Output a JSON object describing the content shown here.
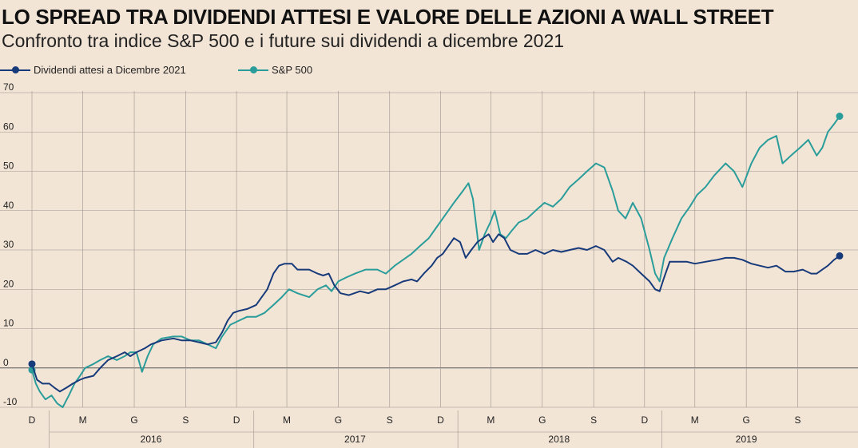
{
  "title": "LO SPREAD TRA DIVIDENDI ATTESI E VALORE DELLE AZIONI A WALL STREET",
  "subtitle": "Confronto tra indice S&P 500 e i future sui dividendi a dicembre 2021",
  "colors": {
    "dividends": "#173a7a",
    "sp500": "#2a9d9b",
    "background": "#f3e5d6",
    "grid": "#8a8a8a"
  },
  "chart_data": {
    "type": "line",
    "title": "LO SPREAD TRA DIVIDENDI ATTESI E VALORE DELLE AZIONI A WALL STREET",
    "subtitle": "Confronto tra indice S&P 500 e i future sui dividendi a dicembre 2021",
    "xlabel": "",
    "ylabel": "",
    "ylim": [
      -10,
      70
    ],
    "yticks": [
      -10,
      0,
      10,
      20,
      30,
      40,
      50,
      60,
      70
    ],
    "x_range": [
      "2015-12-01",
      "2019-11-15"
    ],
    "month_ticks": [
      {
        "date": "2015-12-01",
        "label": "D"
      },
      {
        "date": "2016-03-01",
        "label": "M"
      },
      {
        "date": "2016-06-01",
        "label": "G"
      },
      {
        "date": "2016-09-01",
        "label": "S"
      },
      {
        "date": "2016-12-01",
        "label": "D"
      },
      {
        "date": "2017-03-01",
        "label": "M"
      },
      {
        "date": "2017-06-01",
        "label": "G"
      },
      {
        "date": "2017-09-01",
        "label": "S"
      },
      {
        "date": "2017-12-01",
        "label": "D"
      },
      {
        "date": "2018-03-01",
        "label": "M"
      },
      {
        "date": "2018-06-01",
        "label": "G"
      },
      {
        "date": "2018-09-01",
        "label": "S"
      },
      {
        "date": "2018-12-01",
        "label": "D"
      },
      {
        "date": "2019-03-01",
        "label": "M"
      },
      {
        "date": "2019-06-01",
        "label": "G"
      },
      {
        "date": "2019-09-01",
        "label": "S"
      }
    ],
    "year_labels": [
      {
        "label": "2016",
        "date": "2016-07-01"
      },
      {
        "label": "2017",
        "date": "2017-07-01"
      },
      {
        "label": "2018",
        "date": "2018-07-01"
      },
      {
        "label": "2019",
        "date": "2019-06-01"
      }
    ],
    "year_separators": [
      "2016-01-01",
      "2017-01-01",
      "2018-01-01",
      "2019-01-01"
    ],
    "grid": true,
    "legend_position": "top-left",
    "series": [
      {
        "name": "Dividendi attesi a Dicembre 2021",
        "key": "dividends",
        "points": [
          [
            "2015-12-01",
            1
          ],
          [
            "2015-12-10",
            -3
          ],
          [
            "2015-12-20",
            -4
          ],
          [
            "2016-01-01",
            -4
          ],
          [
            "2016-01-10",
            -5
          ],
          [
            "2016-01-20",
            -6
          ],
          [
            "2016-02-01",
            -5
          ],
          [
            "2016-02-12",
            -4
          ],
          [
            "2016-02-25",
            -3
          ],
          [
            "2016-03-05",
            -2.5
          ],
          [
            "2016-03-20",
            -2
          ],
          [
            "2016-04-01",
            0
          ],
          [
            "2016-04-15",
            2
          ],
          [
            "2016-05-01",
            3
          ],
          [
            "2016-05-15",
            4
          ],
          [
            "2016-05-25",
            3
          ],
          [
            "2016-06-05",
            4
          ],
          [
            "2016-06-20",
            5
          ],
          [
            "2016-07-01",
            6
          ],
          [
            "2016-07-20",
            7
          ],
          [
            "2016-08-10",
            7.5
          ],
          [
            "2016-08-25",
            7
          ],
          [
            "2016-09-10",
            7
          ],
          [
            "2016-09-25",
            6.5
          ],
          [
            "2016-10-10",
            6
          ],
          [
            "2016-10-25",
            6.5
          ],
          [
            "2016-11-05",
            9
          ],
          [
            "2016-11-15",
            12
          ],
          [
            "2016-11-25",
            14
          ],
          [
            "2016-12-05",
            14.5
          ],
          [
            "2016-12-20",
            15
          ],
          [
            "2017-01-05",
            16
          ],
          [
            "2017-01-15",
            18
          ],
          [
            "2017-01-25",
            20
          ],
          [
            "2017-02-05",
            24
          ],
          [
            "2017-02-15",
            26
          ],
          [
            "2017-02-25",
            26.5
          ],
          [
            "2017-03-10",
            26.5
          ],
          [
            "2017-03-20",
            25
          ],
          [
            "2017-04-10",
            25
          ],
          [
            "2017-04-25",
            24
          ],
          [
            "2017-05-05",
            23.5
          ],
          [
            "2017-05-15",
            24
          ],
          [
            "2017-05-25",
            21
          ],
          [
            "2017-06-05",
            19
          ],
          [
            "2017-06-20",
            18.5
          ],
          [
            "2017-07-10",
            19.5
          ],
          [
            "2017-07-25",
            19
          ],
          [
            "2017-08-10",
            20
          ],
          [
            "2017-08-25",
            20
          ],
          [
            "2017-09-10",
            21
          ],
          [
            "2017-09-25",
            22
          ],
          [
            "2017-10-10",
            22.5
          ],
          [
            "2017-10-20",
            22
          ],
          [
            "2017-11-01",
            24
          ],
          [
            "2017-11-15",
            26
          ],
          [
            "2017-11-25",
            28
          ],
          [
            "2017-12-05",
            29
          ],
          [
            "2017-12-15",
            31
          ],
          [
            "2017-12-25",
            33
          ],
          [
            "2018-01-05",
            32
          ],
          [
            "2018-01-15",
            28
          ],
          [
            "2018-01-25",
            30
          ],
          [
            "2018-02-05",
            32
          ],
          [
            "2018-02-15",
            33
          ],
          [
            "2018-02-25",
            34
          ],
          [
            "2018-03-05",
            32
          ],
          [
            "2018-03-15",
            34
          ],
          [
            "2018-03-25",
            33
          ],
          [
            "2018-04-05",
            30
          ],
          [
            "2018-04-20",
            29
          ],
          [
            "2018-05-05",
            29
          ],
          [
            "2018-05-20",
            30
          ],
          [
            "2018-06-05",
            29
          ],
          [
            "2018-06-20",
            30
          ],
          [
            "2018-07-05",
            29.5
          ],
          [
            "2018-07-20",
            30
          ],
          [
            "2018-08-05",
            30.5
          ],
          [
            "2018-08-20",
            30
          ],
          [
            "2018-09-05",
            31
          ],
          [
            "2018-09-20",
            30
          ],
          [
            "2018-10-05",
            27
          ],
          [
            "2018-10-15",
            28
          ],
          [
            "2018-10-30",
            27
          ],
          [
            "2018-11-10",
            26
          ],
          [
            "2018-11-25",
            24
          ],
          [
            "2018-12-10",
            22
          ],
          [
            "2018-12-20",
            20
          ],
          [
            "2018-12-28",
            19.5
          ],
          [
            "2019-01-05",
            23
          ],
          [
            "2019-01-15",
            27
          ],
          [
            "2019-01-30",
            27
          ],
          [
            "2019-02-15",
            27
          ],
          [
            "2019-03-01",
            26.5
          ],
          [
            "2019-03-20",
            27
          ],
          [
            "2019-04-10",
            27.5
          ],
          [
            "2019-04-25",
            28
          ],
          [
            "2019-05-10",
            28
          ],
          [
            "2019-05-25",
            27.5
          ],
          [
            "2019-06-10",
            26.5
          ],
          [
            "2019-06-25",
            26
          ],
          [
            "2019-07-10",
            25.5
          ],
          [
            "2019-07-25",
            26
          ],
          [
            "2019-08-10",
            24.5
          ],
          [
            "2019-08-25",
            24.5
          ],
          [
            "2019-09-10",
            25
          ],
          [
            "2019-09-25",
            24
          ],
          [
            "2019-10-05",
            24
          ],
          [
            "2019-10-15",
            25
          ],
          [
            "2019-10-25",
            26
          ],
          [
            "2019-11-05",
            27.5
          ],
          [
            "2019-11-15",
            28.5
          ]
        ]
      },
      {
        "name": "S&P 500",
        "key": "sp500",
        "points": [
          [
            "2015-12-01",
            -0.5
          ],
          [
            "2015-12-08",
            -4
          ],
          [
            "2015-12-15",
            -6
          ],
          [
            "2015-12-25",
            -8
          ],
          [
            "2016-01-05",
            -7
          ],
          [
            "2016-01-15",
            -9
          ],
          [
            "2016-01-25",
            -10
          ],
          [
            "2016-02-05",
            -7
          ],
          [
            "2016-02-15",
            -4
          ],
          [
            "2016-02-25",
            -2
          ],
          [
            "2016-03-05",
            0
          ],
          [
            "2016-03-20",
            1
          ],
          [
            "2016-04-01",
            2
          ],
          [
            "2016-04-15",
            3
          ],
          [
            "2016-05-01",
            2
          ],
          [
            "2016-05-15",
            3
          ],
          [
            "2016-05-25",
            4
          ],
          [
            "2016-06-05",
            4
          ],
          [
            "2016-06-15",
            -1
          ],
          [
            "2016-06-25",
            3
          ],
          [
            "2016-07-05",
            6
          ],
          [
            "2016-07-20",
            7.5
          ],
          [
            "2016-08-10",
            8
          ],
          [
            "2016-08-25",
            8
          ],
          [
            "2016-09-10",
            7
          ],
          [
            "2016-09-25",
            7
          ],
          [
            "2016-10-10",
            6
          ],
          [
            "2016-10-25",
            5
          ],
          [
            "2016-11-05",
            8
          ],
          [
            "2016-11-20",
            11
          ],
          [
            "2016-12-05",
            12
          ],
          [
            "2016-12-20",
            13
          ],
          [
            "2017-01-05",
            13
          ],
          [
            "2017-01-20",
            14
          ],
          [
            "2017-02-05",
            16
          ],
          [
            "2017-02-20",
            18
          ],
          [
            "2017-03-05",
            20
          ],
          [
            "2017-03-20",
            19
          ],
          [
            "2017-04-10",
            18
          ],
          [
            "2017-04-25",
            20
          ],
          [
            "2017-05-10",
            21
          ],
          [
            "2017-05-20",
            19.5
          ],
          [
            "2017-06-01",
            22
          ],
          [
            "2017-06-15",
            23
          ],
          [
            "2017-07-01",
            24
          ],
          [
            "2017-07-20",
            25
          ],
          [
            "2017-08-10",
            25
          ],
          [
            "2017-08-25",
            24
          ],
          [
            "2017-09-10",
            26
          ],
          [
            "2017-09-25",
            27.5
          ],
          [
            "2017-10-10",
            29
          ],
          [
            "2017-10-25",
            31
          ],
          [
            "2017-11-10",
            33
          ],
          [
            "2017-11-25",
            36
          ],
          [
            "2017-12-10",
            39
          ],
          [
            "2017-12-25",
            42
          ],
          [
            "2018-01-10",
            45
          ],
          [
            "2018-01-20",
            47
          ],
          [
            "2018-01-28",
            43
          ],
          [
            "2018-02-08",
            30
          ],
          [
            "2018-02-18",
            34
          ],
          [
            "2018-02-28",
            37
          ],
          [
            "2018-03-08",
            40
          ],
          [
            "2018-03-18",
            34
          ],
          [
            "2018-03-28",
            33
          ],
          [
            "2018-04-08",
            35
          ],
          [
            "2018-04-20",
            37
          ],
          [
            "2018-05-05",
            38
          ],
          [
            "2018-05-20",
            40
          ],
          [
            "2018-06-05",
            42
          ],
          [
            "2018-06-20",
            41
          ],
          [
            "2018-07-05",
            43
          ],
          [
            "2018-07-20",
            46
          ],
          [
            "2018-08-05",
            48
          ],
          [
            "2018-08-20",
            50
          ],
          [
            "2018-09-05",
            52
          ],
          [
            "2018-09-20",
            51
          ],
          [
            "2018-10-05",
            45
          ],
          [
            "2018-10-15",
            40
          ],
          [
            "2018-10-28",
            38
          ],
          [
            "2018-11-10",
            42
          ],
          [
            "2018-11-25",
            38
          ],
          [
            "2018-12-10",
            30
          ],
          [
            "2018-12-20",
            24
          ],
          [
            "2018-12-28",
            22
          ],
          [
            "2019-01-05",
            28
          ],
          [
            "2019-01-20",
            33
          ],
          [
            "2019-02-05",
            38
          ],
          [
            "2019-02-20",
            41
          ],
          [
            "2019-03-05",
            44
          ],
          [
            "2019-03-20",
            46
          ],
          [
            "2019-04-05",
            49
          ],
          [
            "2019-04-25",
            52
          ],
          [
            "2019-05-10",
            50
          ],
          [
            "2019-05-25",
            46
          ],
          [
            "2019-06-10",
            52
          ],
          [
            "2019-06-25",
            56
          ],
          [
            "2019-07-10",
            58
          ],
          [
            "2019-07-25",
            59
          ],
          [
            "2019-08-05",
            52
          ],
          [
            "2019-08-20",
            54
          ],
          [
            "2019-09-05",
            56
          ],
          [
            "2019-09-20",
            58
          ],
          [
            "2019-10-05",
            54
          ],
          [
            "2019-10-15",
            56
          ],
          [
            "2019-10-25",
            60
          ],
          [
            "2019-11-05",
            62
          ],
          [
            "2019-11-15",
            64
          ]
        ]
      }
    ]
  }
}
